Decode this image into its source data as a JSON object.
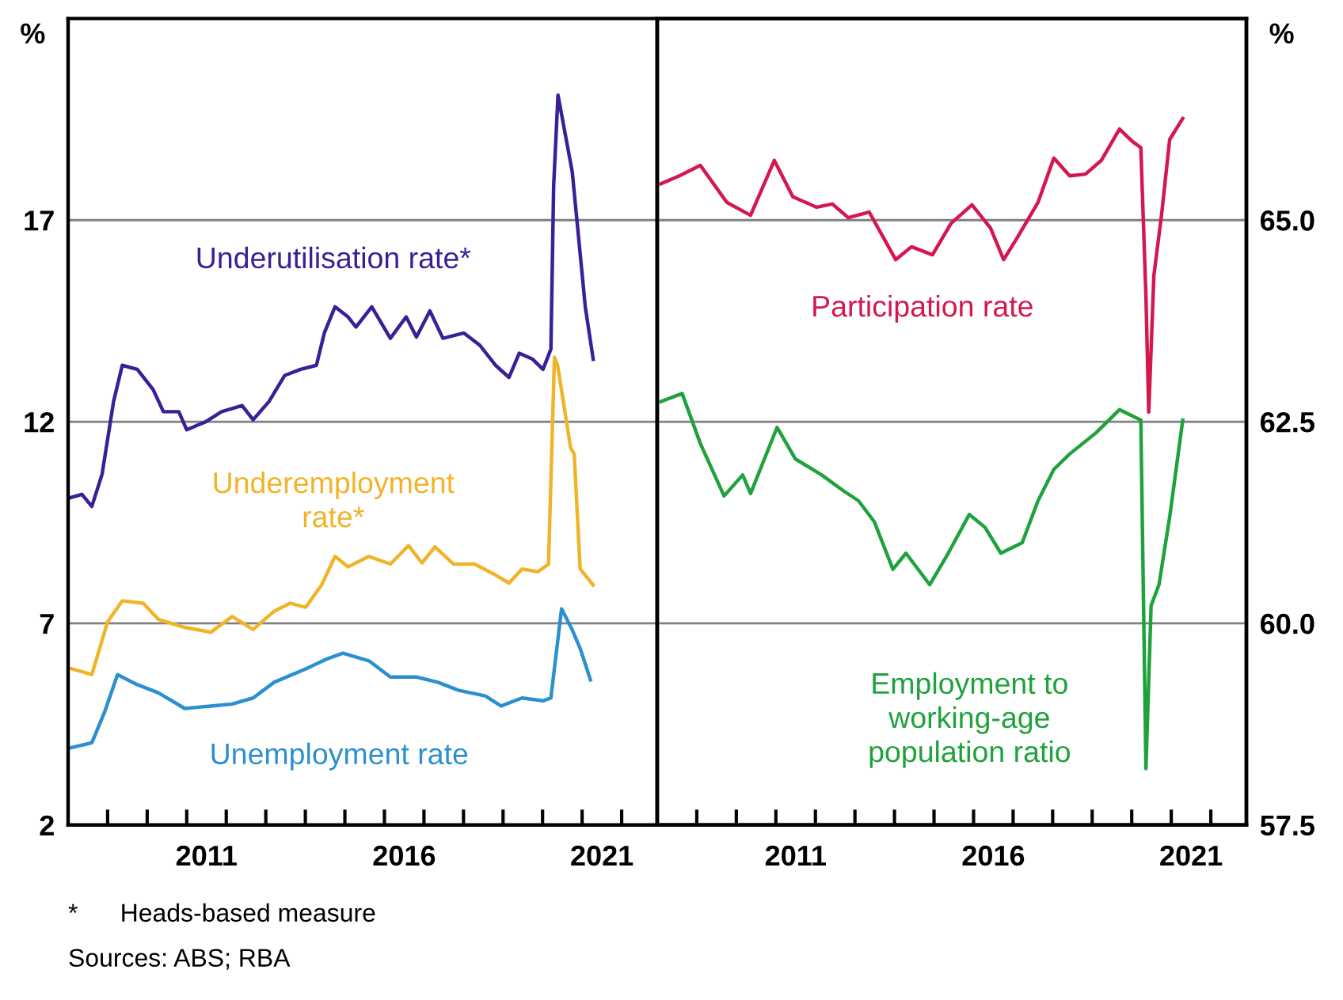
{
  "chart_data": [
    {
      "type": "line",
      "ylabel": "%",
      "xlim": [
        2008,
        2022.9
      ],
      "ylim": [
        2,
        22
      ],
      "yticks": [
        2,
        7,
        12,
        17
      ],
      "xticks": [
        {
          "value": 2009,
          "label": null
        },
        {
          "value": 2010,
          "label": null
        },
        {
          "value": 2011,
          "label": null
        },
        {
          "value": 2011.5,
          "label": "2011"
        },
        {
          "value": 2012,
          "label": null
        },
        {
          "value": 2013,
          "label": null
        },
        {
          "value": 2014,
          "label": null
        },
        {
          "value": 2015,
          "label": null
        },
        {
          "value": 2016,
          "label": null
        },
        {
          "value": 2016.5,
          "label": "2016"
        },
        {
          "value": 2017,
          "label": null
        },
        {
          "value": 2018,
          "label": null
        },
        {
          "value": 2019,
          "label": null
        },
        {
          "value": 2020,
          "label": null
        },
        {
          "value": 2021,
          "label": null
        },
        {
          "value": 2021.5,
          "label": "2021"
        },
        {
          "value": 2022,
          "label": null
        }
      ],
      "grid": "y",
      "legend": false,
      "annotations": [
        "*      Heads-based measure",
        "Sources: ABS; RBA"
      ],
      "series": [
        {
          "name": "Underutilisation rate*",
          "color": "#3b1f96",
          "x": [
            2008.0,
            2008.35,
            2008.6,
            2008.86,
            2009.15,
            2009.37,
            2009.75,
            2010.15,
            2010.41,
            2010.8,
            2011.0,
            2011.48,
            2011.88,
            2012.4,
            2012.68,
            2013.08,
            2013.48,
            2013.88,
            2014.28,
            2014.48,
            2014.75,
            2015.08,
            2015.28,
            2015.68,
            2016.15,
            2016.55,
            2016.81,
            2017.15,
            2017.48,
            2018.01,
            2018.41,
            2018.81,
            2019.15,
            2019.41,
            2019.75,
            2020.01,
            2020.21,
            2020.28,
            2020.39,
            2020.75,
            2021.08,
            2021.28
          ],
          "values": [
            10.1,
            10.2,
            9.9,
            10.7,
            12.5,
            13.4,
            13.3,
            12.8,
            12.25,
            12.25,
            11.8,
            12.0,
            12.25,
            12.4,
            12.05,
            12.5,
            13.15,
            13.3,
            13.4,
            14.2,
            14.85,
            14.6,
            14.35,
            14.85,
            14.07,
            14.6,
            14.1,
            14.75,
            14.07,
            14.2,
            13.9,
            13.4,
            13.1,
            13.7,
            13.55,
            13.3,
            13.8,
            17.85,
            20.1,
            18.2,
            14.85,
            13.55
          ]
        },
        {
          "name": "Underemployment\nrate*",
          "color": "#f0b428",
          "x": [
            2008.0,
            2008.6,
            2009.0,
            2009.37,
            2009.9,
            2010.28,
            2010.95,
            2011.61,
            2012.15,
            2012.68,
            2013.21,
            2013.61,
            2014.01,
            2014.41,
            2014.75,
            2015.08,
            2015.61,
            2016.15,
            2016.61,
            2016.95,
            2017.28,
            2017.75,
            2018.28,
            2018.81,
            2019.15,
            2019.48,
            2019.88,
            2020.15,
            2020.3,
            2020.38,
            2020.71,
            2020.8,
            2020.95,
            2021.28
          ],
          "values": [
            5.9,
            5.73,
            7.04,
            7.56,
            7.5,
            7.1,
            6.9,
            6.78,
            7.17,
            6.85,
            7.3,
            7.5,
            7.4,
            7.95,
            8.66,
            8.4,
            8.66,
            8.47,
            8.93,
            8.5,
            8.9,
            8.47,
            8.47,
            8.2,
            8.0,
            8.35,
            8.28,
            8.47,
            13.6,
            13.4,
            11.35,
            11.2,
            8.35,
            7.95
          ]
        },
        {
          "name": "Unemployment rate",
          "color": "#2b8fd0",
          "x": [
            2008.0,
            2008.6,
            2008.93,
            2009.25,
            2009.75,
            2010.28,
            2010.95,
            2011.61,
            2012.15,
            2012.68,
            2013.21,
            2014.01,
            2014.55,
            2014.95,
            2015.61,
            2016.15,
            2016.81,
            2017.35,
            2017.88,
            2018.55,
            2018.95,
            2019.48,
            2020.01,
            2020.21,
            2020.48,
            2020.75,
            2020.95,
            2021.21
          ],
          "values": [
            3.9,
            4.04,
            4.82,
            5.73,
            5.48,
            5.28,
            4.89,
            4.95,
            5.0,
            5.15,
            5.54,
            5.87,
            6.12,
            6.26,
            6.07,
            5.67,
            5.67,
            5.54,
            5.34,
            5.2,
            4.95,
            5.15,
            5.08,
            5.15,
            7.36,
            6.84,
            6.38,
            5.6
          ]
        }
      ]
    },
    {
      "type": "line",
      "y2label": "%",
      "xlim": [
        2008,
        2022.9
      ],
      "y2lim": [
        57.5,
        67.5
      ],
      "y2ticks": [
        {
          "value": 57.5,
          "label": "57.5"
        },
        {
          "value": 60,
          "label": "60.0"
        },
        {
          "value": 62.5,
          "label": "62.5"
        },
        {
          "value": 65,
          "label": "65.0"
        }
      ],
      "xticks": [
        {
          "value": 2009,
          "label": null
        },
        {
          "value": 2010,
          "label": null
        },
        {
          "value": 2011,
          "label": null
        },
        {
          "value": 2011.5,
          "label": "2011"
        },
        {
          "value": 2012,
          "label": null
        },
        {
          "value": 2013,
          "label": null
        },
        {
          "value": 2014,
          "label": null
        },
        {
          "value": 2015,
          "label": null
        },
        {
          "value": 2016,
          "label": null
        },
        {
          "value": 2016.5,
          "label": "2016"
        },
        {
          "value": 2017,
          "label": null
        },
        {
          "value": 2018,
          "label": null
        },
        {
          "value": 2019,
          "label": null
        },
        {
          "value": 2020,
          "label": null
        },
        {
          "value": 2021,
          "label": null
        },
        {
          "value": 2021.5,
          "label": "2021"
        },
        {
          "value": 2022,
          "label": null
        }
      ],
      "grid": "y",
      "legend": false,
      "series": [
        {
          "name": "Participation rate",
          "color": "#d4174e",
          "axis": "y2",
          "x": [
            2008.09,
            2008.56,
            2009.09,
            2009.76,
            2010.36,
            2010.96,
            2011.43,
            2012.03,
            2012.43,
            2012.83,
            2013.36,
            2014.03,
            2014.43,
            2014.96,
            2015.43,
            2015.96,
            2016.43,
            2016.76,
            2017.09,
            2017.63,
            2018.03,
            2018.43,
            2018.83,
            2019.23,
            2019.69,
            2020.03,
            2020.23,
            2020.36,
            2020.43,
            2020.56,
            2020.76,
            2020.96,
            2021.29
          ],
          "values": [
            65.45,
            65.55,
            65.68,
            65.22,
            65.06,
            65.74,
            65.29,
            65.16,
            65.2,
            65.03,
            65.1,
            64.51,
            64.67,
            64.57,
            64.96,
            65.19,
            64.9,
            64.51,
            64.77,
            65.22,
            65.77,
            65.55,
            65.57,
            65.74,
            66.13,
            65.97,
            65.9,
            64.05,
            62.62,
            64.31,
            65.09,
            66.0,
            66.26
          ]
        },
        {
          "name": "Employment to\nworking-age\npopulation ratio",
          "color": "#1fa23c",
          "axis": "y2",
          "x": [
            2008.09,
            2008.63,
            2009.09,
            2009.69,
            2010.16,
            2010.36,
            2011.03,
            2011.49,
            2012.16,
            2012.69,
            2013.09,
            2013.49,
            2013.96,
            2014.29,
            2014.89,
            2015.36,
            2015.89,
            2016.29,
            2016.69,
            2017.23,
            2017.63,
            2018.03,
            2018.43,
            2019.09,
            2019.69,
            2020.23,
            2020.36,
            2020.49,
            2020.69,
            2020.96,
            2021.29
          ],
          "values": [
            62.75,
            62.85,
            62.23,
            61.58,
            61.84,
            61.61,
            62.43,
            62.04,
            61.84,
            61.65,
            61.52,
            61.26,
            60.67,
            60.87,
            60.48,
            60.87,
            61.35,
            61.19,
            60.87,
            61.0,
            61.52,
            61.91,
            62.1,
            62.36,
            62.65,
            62.52,
            58.2,
            60.22,
            60.48,
            61.32,
            62.52
          ]
        }
      ]
    }
  ]
}
